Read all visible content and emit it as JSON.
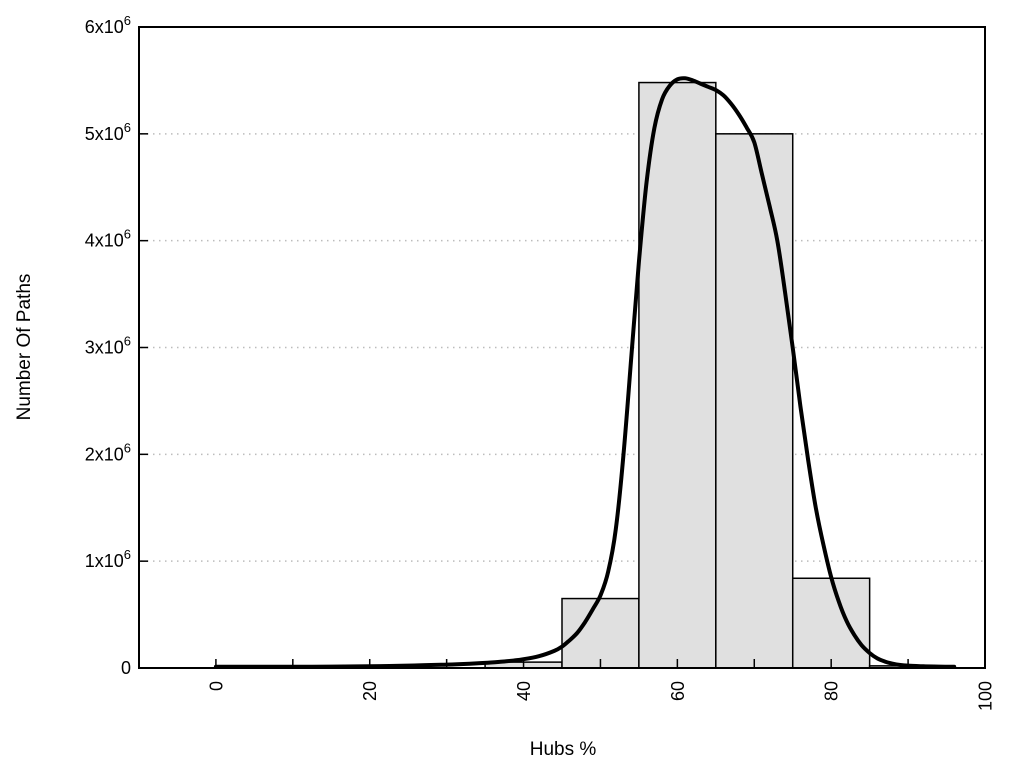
{
  "chart_data": {
    "type": "bar",
    "subtype": "histogram-with-fit-curve",
    "title": "",
    "xlabel": "Hubs %",
    "ylabel": "Number Of Paths",
    "xlim": [
      -10,
      100
    ],
    "ylim": [
      0,
      6000000
    ],
    "grid": "horizontal-dotted",
    "legend_position": "none",
    "x_tick_label_rotation": -90,
    "x_ticks": [
      {
        "value": 0,
        "label": "0"
      },
      {
        "value": 20,
        "label": "20"
      },
      {
        "value": 40,
        "label": "40"
      },
      {
        "value": 60,
        "label": "60"
      },
      {
        "value": 80,
        "label": "80"
      },
      {
        "value": 100,
        "label": "100"
      }
    ],
    "x_minor_ticks": [
      10,
      30,
      50,
      70,
      90
    ],
    "y_ticks": [
      {
        "value": 0,
        "label": "0"
      },
      {
        "value": 1000000,
        "label": "1x10^6"
      },
      {
        "value": 2000000,
        "label": "2x10^6"
      },
      {
        "value": 3000000,
        "label": "3x10^6"
      },
      {
        "value": 4000000,
        "label": "4x10^6"
      },
      {
        "value": 5000000,
        "label": "5x10^6"
      },
      {
        "value": 6000000,
        "label": "6x10^6"
      }
    ],
    "bars": [
      {
        "x0": 35,
        "x1": 45,
        "count": 55000
      },
      {
        "x0": 45,
        "x1": 55,
        "count": 650000
      },
      {
        "x0": 55,
        "x1": 65,
        "count": 5480000
      },
      {
        "x0": 65,
        "x1": 75,
        "count": 5000000
      },
      {
        "x0": 75,
        "x1": 85,
        "count": 840000
      },
      {
        "x0": 85,
        "x1": 95,
        "count": 20000
      }
    ],
    "curve": {
      "name": "fit-curve",
      "points": [
        [
          0,
          12000
        ],
        [
          5,
          12000
        ],
        [
          10,
          12000
        ],
        [
          15,
          13000
        ],
        [
          20,
          16000
        ],
        [
          25,
          22000
        ],
        [
          30,
          32000
        ],
        [
          33,
          40000
        ],
        [
          35,
          48000
        ],
        [
          37,
          58000
        ],
        [
          39,
          72000
        ],
        [
          40,
          82000
        ],
        [
          42,
          110000
        ],
        [
          44,
          160000
        ],
        [
          45,
          200000
        ],
        [
          46,
          260000
        ],
        [
          47,
          330000
        ],
        [
          48,
          430000
        ],
        [
          49,
          550000
        ],
        [
          50,
          680000
        ],
        [
          51,
          900000
        ],
        [
          52,
          1300000
        ],
        [
          53,
          2000000
        ],
        [
          54,
          2900000
        ],
        [
          55,
          3800000
        ],
        [
          56,
          4550000
        ],
        [
          57,
          5050000
        ],
        [
          58,
          5320000
        ],
        [
          59,
          5450000
        ],
        [
          60,
          5510000
        ],
        [
          61,
          5520000
        ],
        [
          62,
          5500000
        ],
        [
          63,
          5470000
        ],
        [
          64,
          5440000
        ],
        [
          65,
          5410000
        ],
        [
          66,
          5360000
        ],
        [
          67,
          5280000
        ],
        [
          68,
          5180000
        ],
        [
          69,
          5060000
        ],
        [
          70,
          4920000
        ],
        [
          71,
          4620000
        ],
        [
          72,
          4320000
        ],
        [
          73,
          4000000
        ],
        [
          74,
          3520000
        ],
        [
          75,
          3000000
        ],
        [
          76,
          2450000
        ],
        [
          77,
          1950000
        ],
        [
          78,
          1500000
        ],
        [
          79,
          1150000
        ],
        [
          80,
          850000
        ],
        [
          81,
          620000
        ],
        [
          82,
          440000
        ],
        [
          83,
          310000
        ],
        [
          84,
          210000
        ],
        [
          85,
          140000
        ],
        [
          86,
          90000
        ],
        [
          87,
          60000
        ],
        [
          88,
          40000
        ],
        [
          89,
          28000
        ],
        [
          90,
          22000
        ],
        [
          92,
          16000
        ],
        [
          94,
          13000
        ],
        [
          96,
          12000
        ]
      ]
    },
    "colors": {
      "background": "#ffffff",
      "bar_fill": "#e0e0e0",
      "bar_stroke": "#000000",
      "curve": "#000000",
      "grid": "#bcbcbc",
      "axis": "#000000",
      "text": "#000000"
    }
  }
}
